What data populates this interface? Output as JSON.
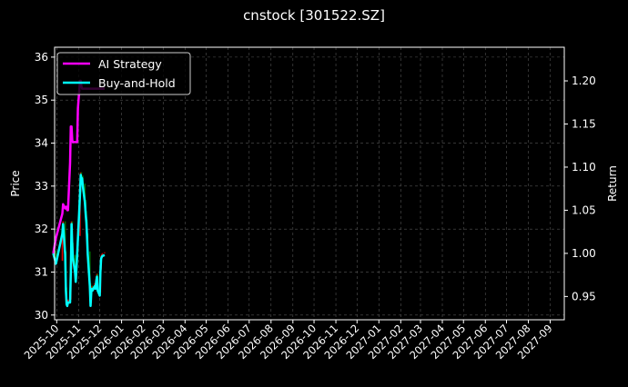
{
  "chart_data": {
    "type": "line",
    "title": "cnstock [301522.SZ]",
    "ylabel": "Price",
    "ylabel_right": "Return",
    "ylim": [
      29.89,
      36.23
    ],
    "ylim_right": [
      0.923,
      1.239
    ],
    "xlim": [
      "2025-09-28",
      "2027-09-21"
    ],
    "yticks": [
      30,
      31,
      32,
      33,
      34,
      35,
      36
    ],
    "yticks_right": [
      "0.95",
      "1.00",
      "1.05",
      "1.10",
      "1.15",
      "1.20"
    ],
    "xticks": [
      "2025-10",
      "2025-11",
      "2025-12",
      "2026-01",
      "2026-02",
      "2026-03",
      "2026-04",
      "2026-05",
      "2026-06",
      "2026-07",
      "2026-08",
      "2026-09",
      "2026-10",
      "2026-11",
      "2026-12",
      "2027-01",
      "2027-02",
      "2027-03",
      "2027-04",
      "2027-05",
      "2027-06",
      "2027-07",
      "2027-08",
      "2027-09"
    ],
    "grid": true,
    "legend_position": "top-left",
    "colors": {
      "background": "#000000",
      "up": "#ff0000",
      "down": "#008000",
      "ai": "#ff00ff",
      "bh": "#00ffff",
      "grid": "#555555"
    },
    "dates": [
      "2025-09-26",
      "2025-09-30",
      "2025-10-09",
      "2025-10-10",
      "2025-10-13",
      "2025-10-14",
      "2025-10-15",
      "2025-10-16",
      "2025-10-17",
      "2025-10-20",
      "2025-10-21",
      "2025-10-22",
      "2025-10-23",
      "2025-10-24",
      "2025-10-27",
      "2025-10-28",
      "2025-10-29",
      "2025-10-30",
      "2025-10-31",
      "2025-11-03",
      "2025-11-04",
      "2025-11-05",
      "2025-11-06",
      "2025-11-07",
      "2025-11-10",
      "2025-11-11",
      "2025-11-12",
      "2025-11-13",
      "2025-11-14",
      "2025-11-17",
      "2025-11-18",
      "2025-11-19",
      "2025-11-20",
      "2025-11-21",
      "2025-11-24",
      "2025-11-25",
      "2025-11-26",
      "2025-11-27",
      "2025-11-28",
      "2025-12-01",
      "2025-12-02",
      "2025-12-03",
      "2025-12-04",
      "2025-12-05",
      "2025-12-08"
    ],
    "price_close": [
      31.5,
      31.26,
      31.96,
      32.18,
      31.48,
      30.64,
      30.32,
      30.28,
      30.36,
      30.36,
      31.06,
      32.18,
      31.68,
      31.4,
      31.06,
      30.84,
      31.16,
      31.48,
      31.84,
      32.86,
      33.32,
      33.24,
      33.24,
      33.06,
      32.68,
      32.42,
      32.22,
      31.9,
      31.48,
      30.74,
      30.28,
      30.6,
      30.68,
      30.64,
      30.74,
      30.68,
      30.84,
      30.96,
      30.64,
      30.52,
      31.06,
      31.38,
      31.42,
      31.44,
      31.46
    ],
    "series": [
      {
        "name": "AI Strategy",
        "values": [
          1.0,
          1.018,
          1.046,
          1.057,
          1.052,
          1.054,
          1.054,
          1.05,
          1.05,
          1.105,
          1.147,
          1.147,
          1.131,
          1.129,
          1.129,
          1.129,
          1.129,
          1.129,
          1.168,
          1.2,
          1.2,
          1.194,
          1.191,
          1.191,
          1.191,
          1.191,
          1.191,
          1.191,
          1.191,
          1.191,
          1.191,
          1.191,
          1.191,
          1.191,
          1.191,
          1.191,
          1.191,
          1.191,
          1.191,
          1.191,
          1.191,
          1.191,
          1.191,
          1.191,
          1.191
        ]
      },
      {
        "name": "Buy-and-Hold",
        "values": [
          1.0,
          0.988,
          1.023,
          1.034,
          0.999,
          0.957,
          0.941,
          0.939,
          0.943,
          0.943,
          0.978,
          1.034,
          1.009,
          0.995,
          0.978,
          0.967,
          0.983,
          0.999,
          1.017,
          1.068,
          1.091,
          1.087,
          1.087,
          1.078,
          1.059,
          1.046,
          1.036,
          1.02,
          0.999,
          0.962,
          0.939,
          0.955,
          0.959,
          0.957,
          0.962,
          0.959,
          0.967,
          0.973,
          0.957,
          0.951,
          0.978,
          0.994,
          0.996,
          0.997,
          0.998
        ]
      }
    ]
  }
}
